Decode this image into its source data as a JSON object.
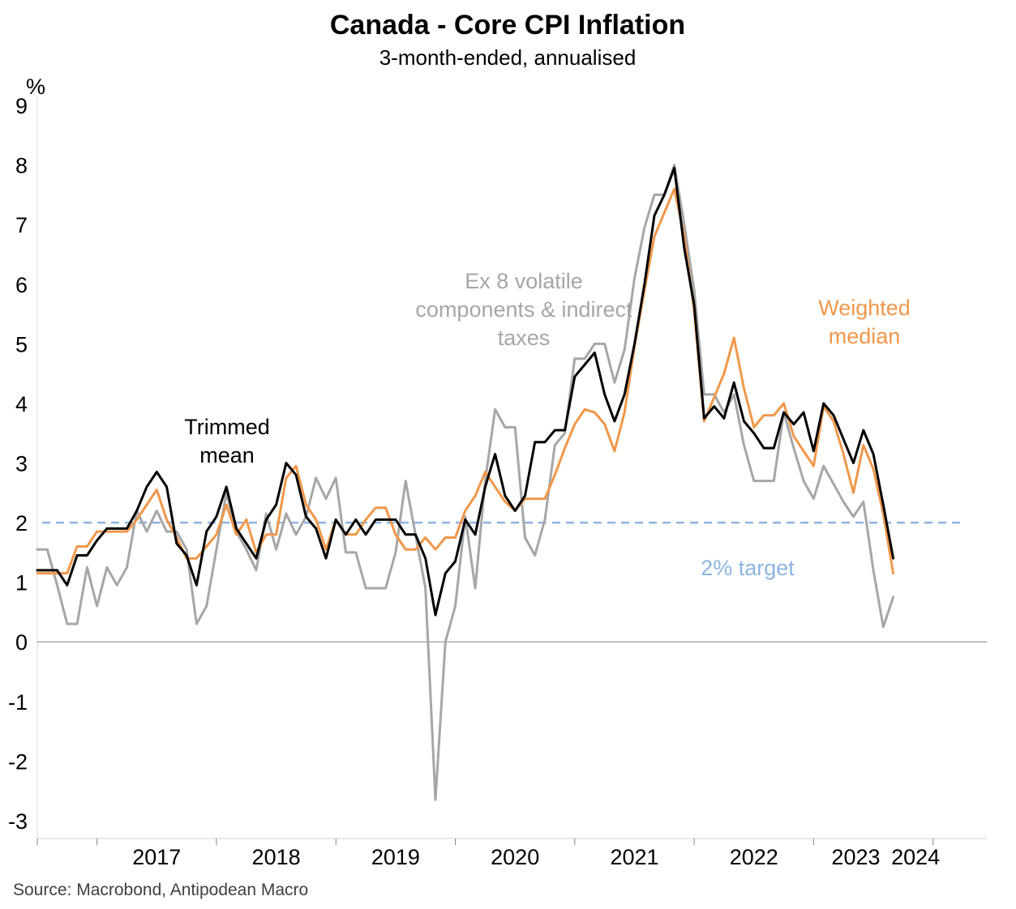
{
  "chart_data": {
    "type": "line",
    "title": "Canada - Core CPI Inflation",
    "subtitle": "3-month-ended, annualised",
    "ylabel": "%",
    "source": "Source: Macrobond, Antipodean Macro",
    "ylim": [
      -3.3,
      9.3
    ],
    "yticks": [
      9,
      8,
      7,
      6,
      5,
      4,
      3,
      2,
      1,
      0,
      -1,
      -2,
      -3
    ],
    "ytick_labels": [
      "9",
      "8",
      "7",
      "6",
      "5",
      "4",
      "3",
      "2",
      "1",
      "0",
      "-1",
      "-2",
      "-3"
    ],
    "x_start": "2016-07",
    "x_step": "month",
    "xlim": [
      2016.5,
      2024.45
    ],
    "x_year_labels": [
      "2017",
      "2018",
      "2019",
      "2020",
      "2021",
      "2022",
      "2023",
      "2024"
    ],
    "grid": false,
    "target_line": {
      "value": 2,
      "label": "2% target"
    },
    "colors": {
      "trimmed": "#000000",
      "median": "#F0974A",
      "ex8": "#A6A6A6",
      "target": "#8DB4E2",
      "axis": "#808080"
    },
    "series": [
      {
        "name": "Trimmed mean",
        "key": "trimmed",
        "values": [
          1.2,
          1.2,
          1.2,
          0.95,
          1.45,
          1.45,
          1.7,
          1.9,
          1.9,
          1.9,
          2.2,
          2.6,
          2.85,
          2.6,
          1.65,
          1.45,
          0.95,
          1.85,
          2.1,
          2.6,
          1.9,
          1.65,
          1.4,
          2.05,
          2.3,
          3.0,
          2.8,
          2.1,
          1.9,
          1.4,
          2.05,
          1.8,
          2.05,
          1.8,
          2.05,
          2.05,
          2.05,
          1.8,
          1.8,
          1.4,
          0.45,
          1.15,
          1.35,
          2.05,
          1.8,
          2.6,
          3.15,
          2.45,
          2.2,
          2.45,
          3.35,
          3.35,
          3.55,
          3.55,
          4.45,
          4.65,
          4.85,
          4.15,
          3.7,
          4.15,
          5.0,
          6.0,
          7.15,
          7.5,
          7.95,
          6.6,
          5.65,
          3.75,
          3.95,
          3.75,
          4.35,
          3.7,
          3.5,
          3.25,
          3.25,
          3.85,
          3.65,
          3.85,
          3.2,
          4.0,
          3.8,
          3.4,
          3.0,
          3.55,
          3.15,
          2.3,
          1.4
        ]
      },
      {
        "name": "Weighted median",
        "key": "median",
        "values": [
          1.15,
          1.15,
          1.15,
          1.15,
          1.6,
          1.6,
          1.85,
          1.85,
          1.85,
          1.85,
          2.05,
          2.3,
          2.55,
          2.05,
          1.75,
          1.4,
          1.4,
          1.6,
          1.8,
          2.3,
          1.8,
          2.05,
          1.5,
          1.8,
          1.8,
          2.75,
          2.95,
          2.3,
          2.05,
          1.55,
          2.05,
          1.8,
          1.8,
          2.05,
          2.25,
          2.25,
          1.8,
          1.55,
          1.55,
          1.75,
          1.55,
          1.75,
          1.75,
          2.2,
          2.45,
          2.85,
          2.6,
          2.35,
          2.2,
          2.4,
          2.4,
          2.4,
          2.8,
          3.25,
          3.65,
          3.9,
          3.85,
          3.65,
          3.2,
          3.85,
          4.95,
          5.9,
          6.8,
          7.2,
          7.6,
          6.8,
          5.55,
          3.7,
          4.1,
          4.5,
          5.1,
          4.25,
          3.6,
          3.8,
          3.8,
          4.0,
          3.45,
          3.2,
          2.95,
          3.95,
          3.7,
          3.15,
          2.5,
          3.3,
          2.9,
          2.15,
          1.15
        ]
      },
      {
        "name": "Ex 8 volatile components & indirect taxes",
        "key": "ex8",
        "values": [
          1.55,
          1.55,
          0.95,
          0.3,
          0.3,
          1.25,
          0.6,
          1.25,
          0.95,
          1.25,
          2.2,
          1.85,
          2.2,
          1.85,
          1.85,
          1.55,
          0.3,
          0.6,
          1.55,
          2.5,
          1.85,
          1.55,
          1.2,
          2.15,
          1.55,
          2.15,
          1.8,
          2.1,
          2.75,
          2.4,
          2.75,
          1.5,
          1.5,
          0.9,
          0.9,
          0.9,
          1.5,
          2.7,
          1.8,
          0.9,
          -2.65,
          0.0,
          0.6,
          2.1,
          0.9,
          2.7,
          3.9,
          3.6,
          3.6,
          1.75,
          1.45,
          2.05,
          3.3,
          3.5,
          4.75,
          4.75,
          5.0,
          5.0,
          4.35,
          4.9,
          6.1,
          6.95,
          7.5,
          7.5,
          8.0,
          7.0,
          5.9,
          4.15,
          4.15,
          3.85,
          4.15,
          3.3,
          2.7,
          2.7,
          2.7,
          3.85,
          3.25,
          2.7,
          2.4,
          2.95,
          2.65,
          2.35,
          2.1,
          2.35,
          1.2,
          0.25,
          0.75
        ]
      }
    ],
    "annotations": [
      {
        "series": "trimmed",
        "lines": [
          "Trimmed",
          "mean"
        ]
      },
      {
        "series": "ex8",
        "lines": [
          "Ex 8 volatile",
          "components & indirect",
          "taxes"
        ]
      },
      {
        "series": "median",
        "lines": [
          "Weighted",
          "median"
        ]
      }
    ]
  }
}
